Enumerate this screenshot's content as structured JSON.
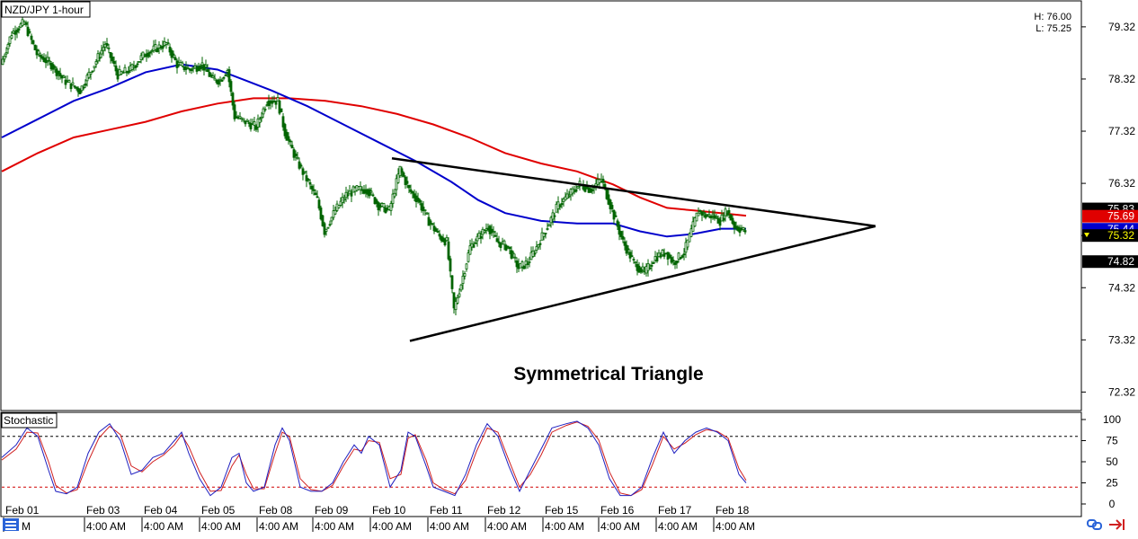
{
  "colors": {
    "ma_fast": "#0000cc",
    "ma_slow": "#e00000",
    "candle": "#006400",
    "stoch_k": "#2020c0",
    "stoch_d": "#d02020",
    "level_high": "#000000",
    "level_low": "#d00000",
    "trendline": "#000000"
  },
  "chart_data": [
    {
      "type": "candlestick",
      "title": "NZD/JPY 1-hour",
      "high_label": "H: 76.00",
      "low_label": "L: 75.25",
      "annotation": "Symmetrical Triangle",
      "ylim": [
        72.0,
        79.8
      ],
      "y_ticks": [
        79.32,
        78.32,
        77.32,
        76.32,
        75.32,
        74.32,
        73.32,
        72.32
      ],
      "y_tick_labels": [
        "79.32",
        "78.32",
        "77.32",
        "76.32",
        "75.32",
        "74.32",
        "73.32",
        "72.32"
      ],
      "price_tags": [
        {
          "value": 75.83,
          "label": "75.83",
          "bg": "#000000",
          "fg": "#ffffff"
        },
        {
          "value": 75.69,
          "label": "75.69",
          "bg": "#e00000",
          "fg": "#ffffff"
        },
        {
          "value": 75.44,
          "label": "75.44",
          "bg": "#0000cc",
          "fg": "#ffffff"
        },
        {
          "value": 75.32,
          "label": "75.32",
          "bg": "#000000",
          "fg": "#ffff00"
        },
        {
          "value": 74.82,
          "label": "74.82",
          "bg": "#000000",
          "fg": "#ffffff"
        }
      ],
      "x_range": [
        0,
        414
      ],
      "x_labels": [
        {
          "x": 1,
          "text": "Feb 01"
        },
        {
          "x": 46,
          "text": "Feb 03"
        },
        {
          "x": 78,
          "text": "Feb 04"
        },
        {
          "x": 110,
          "text": "Feb 05"
        },
        {
          "x": 142,
          "text": "Feb 08"
        },
        {
          "x": 173,
          "text": "Feb 09"
        },
        {
          "x": 205,
          "text": "Feb 10"
        },
        {
          "x": 237,
          "text": "Feb 11"
        },
        {
          "x": 269,
          "text": "Feb 12"
        },
        {
          "x": 301,
          "text": "Feb 15"
        },
        {
          "x": 332,
          "text": "Feb 16"
        },
        {
          "x": 364,
          "text": "Feb 17"
        },
        {
          "x": 396,
          "text": "Feb 18"
        }
      ],
      "x_labels_row2": [
        {
          "x": 10,
          "text": "M"
        },
        {
          "x": 46,
          "text": "4:00 AM"
        },
        {
          "x": 78,
          "text": "4:00 AM"
        },
        {
          "x": 110,
          "text": "4:00 AM"
        },
        {
          "x": 142,
          "text": "4:00 AM"
        },
        {
          "x": 173,
          "text": "4:00 AM"
        },
        {
          "x": 205,
          "text": "4:00 AM"
        },
        {
          "x": 237,
          "text": "4:00 AM"
        },
        {
          "x": 269,
          "text": "4:00 AM"
        },
        {
          "x": 301,
          "text": "4:00 AM"
        },
        {
          "x": 332,
          "text": "4:00 AM"
        },
        {
          "x": 364,
          "text": "4:00 AM"
        },
        {
          "x": 396,
          "text": "4:00 AM"
        }
      ],
      "price_path": [
        [
          0,
          78.6
        ],
        [
          6,
          79.2
        ],
        [
          13,
          79.4
        ],
        [
          20,
          78.8
        ],
        [
          28,
          78.6
        ],
        [
          35,
          78.3
        ],
        [
          44,
          78.1
        ],
        [
          52,
          78.6
        ],
        [
          58,
          79.0
        ],
        [
          65,
          78.4
        ],
        [
          72,
          78.5
        ],
        [
          80,
          78.8
        ],
        [
          86,
          78.9
        ],
        [
          92,
          79.0
        ],
        [
          98,
          78.6
        ],
        [
          105,
          78.5
        ],
        [
          112,
          78.6
        ],
        [
          118,
          78.3
        ],
        [
          122,
          78.3
        ],
        [
          126,
          78.5
        ],
        [
          130,
          77.6
        ],
        [
          136,
          77.5
        ],
        [
          142,
          77.4
        ],
        [
          148,
          77.9
        ],
        [
          154,
          77.9
        ],
        [
          158,
          77.3
        ],
        [
          164,
          76.8
        ],
        [
          170,
          76.4
        ],
        [
          176,
          76.0
        ],
        [
          180,
          75.4
        ],
        [
          186,
          75.8
        ],
        [
          192,
          76.1
        ],
        [
          198,
          76.2
        ],
        [
          204,
          76.2
        ],
        [
          210,
          75.9
        ],
        [
          216,
          75.8
        ],
        [
          222,
          76.6
        ],
        [
          227,
          76.2
        ],
        [
          232,
          76.0
        ],
        [
          238,
          75.6
        ],
        [
          244,
          75.3
        ],
        [
          248,
          75.2
        ],
        [
          252,
          73.9
        ],
        [
          256,
          74.4
        ],
        [
          261,
          75.1
        ],
        [
          266,
          75.3
        ],
        [
          271,
          75.5
        ],
        [
          276,
          75.2
        ],
        [
          282,
          75.1
        ],
        [
          288,
          74.7
        ],
        [
          293,
          74.8
        ],
        [
          298,
          75.1
        ],
        [
          304,
          75.5
        ],
        [
          310,
          75.9
        ],
        [
          316,
          76.1
        ],
        [
          322,
          76.3
        ],
        [
          328,
          76.2
        ],
        [
          334,
          76.4
        ],
        [
          338,
          76.0
        ],
        [
          342,
          75.6
        ],
        [
          346,
          75.2
        ],
        [
          352,
          74.8
        ],
        [
          358,
          74.6
        ],
        [
          364,
          74.9
        ],
        [
          370,
          75.0
        ],
        [
          374,
          74.8
        ],
        [
          380,
          75.0
        ],
        [
          384,
          75.4
        ],
        [
          388,
          75.8
        ],
        [
          392,
          75.7
        ],
        [
          396,
          75.7
        ],
        [
          400,
          75.6
        ],
        [
          404,
          75.8
        ],
        [
          408,
          75.5
        ],
        [
          414,
          75.4
        ]
      ],
      "ma_fast_path": [
        [
          0,
          77.2
        ],
        [
          20,
          77.55
        ],
        [
          40,
          77.9
        ],
        [
          60,
          78.15
        ],
        [
          80,
          78.45
        ],
        [
          100,
          78.6
        ],
        [
          120,
          78.5
        ],
        [
          135,
          78.3
        ],
        [
          150,
          78.1
        ],
        [
          170,
          77.8
        ],
        [
          190,
          77.45
        ],
        [
          210,
          77.1
        ],
        [
          230,
          76.75
        ],
        [
          250,
          76.35
        ],
        [
          265,
          76.0
        ],
        [
          280,
          75.75
        ],
        [
          300,
          75.6
        ],
        [
          320,
          75.55
        ],
        [
          340,
          75.55
        ],
        [
          355,
          75.4
        ],
        [
          370,
          75.3
        ],
        [
          385,
          75.35
        ],
        [
          400,
          75.45
        ],
        [
          414,
          75.45
        ]
      ],
      "ma_slow_path": [
        [
          0,
          76.55
        ],
        [
          20,
          76.9
        ],
        [
          40,
          77.2
        ],
        [
          60,
          77.35
        ],
        [
          80,
          77.5
        ],
        [
          100,
          77.7
        ],
        [
          120,
          77.85
        ],
        [
          140,
          77.95
        ],
        [
          160,
          77.95
        ],
        [
          180,
          77.9
        ],
        [
          200,
          77.8
        ],
        [
          220,
          77.65
        ],
        [
          240,
          77.45
        ],
        [
          260,
          77.2
        ],
        [
          280,
          76.9
        ],
        [
          300,
          76.7
        ],
        [
          320,
          76.55
        ],
        [
          340,
          76.3
        ],
        [
          355,
          76.05
        ],
        [
          370,
          75.85
        ],
        [
          385,
          75.8
        ],
        [
          400,
          75.75
        ],
        [
          414,
          75.7
        ]
      ],
      "trendline_upper": [
        [
          217,
          76.8
        ],
        [
          486,
          75.5
        ]
      ],
      "trendline_lower": [
        [
          227,
          73.3
        ],
        [
          486,
          75.5
        ]
      ]
    },
    {
      "type": "line",
      "title": "Stochastic",
      "ylim": [
        0,
        100
      ],
      "y_ticks": [
        100,
        75,
        50,
        25,
        0
      ],
      "y_tick_labels": [
        "100",
        "75",
        "50",
        "25",
        "0"
      ],
      "levels": [
        80,
        20
      ],
      "k_path": [
        [
          0,
          55
        ],
        [
          8,
          70
        ],
        [
          14,
          90
        ],
        [
          20,
          80
        ],
        [
          26,
          40
        ],
        [
          30,
          15
        ],
        [
          36,
          12
        ],
        [
          42,
          20
        ],
        [
          48,
          60
        ],
        [
          54,
          85
        ],
        [
          60,
          95
        ],
        [
          66,
          75
        ],
        [
          72,
          35
        ],
        [
          78,
          40
        ],
        [
          84,
          55
        ],
        [
          90,
          60
        ],
        [
          96,
          75
        ],
        [
          100,
          85
        ],
        [
          104,
          60
        ],
        [
          110,
          30
        ],
        [
          116,
          10
        ],
        [
          122,
          20
        ],
        [
          128,
          55
        ],
        [
          132,
          60
        ],
        [
          136,
          25
        ],
        [
          140,
          15
        ],
        [
          146,
          20
        ],
        [
          152,
          70
        ],
        [
          156,
          90
        ],
        [
          160,
          75
        ],
        [
          166,
          20
        ],
        [
          172,
          15
        ],
        [
          178,
          15
        ],
        [
          184,
          25
        ],
        [
          190,
          50
        ],
        [
          196,
          70
        ],
        [
          200,
          60
        ],
        [
          204,
          80
        ],
        [
          210,
          70
        ],
        [
          216,
          20
        ],
        [
          222,
          40
        ],
        [
          226,
          85
        ],
        [
          230,
          80
        ],
        [
          236,
          45
        ],
        [
          240,
          20
        ],
        [
          246,
          15
        ],
        [
          252,
          10
        ],
        [
          258,
          35
        ],
        [
          264,
          70
        ],
        [
          270,
          95
        ],
        [
          276,
          80
        ],
        [
          282,
          45
        ],
        [
          288,
          15
        ],
        [
          294,
          40
        ],
        [
          300,
          65
        ],
        [
          306,
          90
        ],
        [
          314,
          95
        ],
        [
          320,
          98
        ],
        [
          326,
          90
        ],
        [
          332,
          70
        ],
        [
          338,
          30
        ],
        [
          344,
          10
        ],
        [
          350,
          10
        ],
        [
          356,
          20
        ],
        [
          362,
          55
        ],
        [
          368,
          85
        ],
        [
          374,
          60
        ],
        [
          380,
          75
        ],
        [
          386,
          85
        ],
        [
          392,
          90
        ],
        [
          398,
          85
        ],
        [
          404,
          75
        ],
        [
          410,
          35
        ],
        [
          414,
          25
        ]
      ],
      "d_path": [
        [
          0,
          52
        ],
        [
          8,
          65
        ],
        [
          14,
          85
        ],
        [
          20,
          84
        ],
        [
          26,
          50
        ],
        [
          30,
          22
        ],
        [
          36,
          13
        ],
        [
          42,
          17
        ],
        [
          48,
          50
        ],
        [
          54,
          78
        ],
        [
          60,
          92
        ],
        [
          66,
          82
        ],
        [
          72,
          45
        ],
        [
          78,
          38
        ],
        [
          84,
          50
        ],
        [
          90,
          58
        ],
        [
          96,
          70
        ],
        [
          100,
          82
        ],
        [
          104,
          68
        ],
        [
          110,
          38
        ],
        [
          116,
          15
        ],
        [
          122,
          16
        ],
        [
          128,
          45
        ],
        [
          132,
          58
        ],
        [
          136,
          35
        ],
        [
          140,
          18
        ],
        [
          146,
          18
        ],
        [
          152,
          60
        ],
        [
          156,
          85
        ],
        [
          160,
          80
        ],
        [
          166,
          30
        ],
        [
          172,
          17
        ],
        [
          178,
          15
        ],
        [
          184,
          22
        ],
        [
          190,
          45
        ],
        [
          196,
          65
        ],
        [
          200,
          63
        ],
        [
          204,
          75
        ],
        [
          210,
          73
        ],
        [
          216,
          30
        ],
        [
          222,
          35
        ],
        [
          226,
          78
        ],
        [
          230,
          82
        ],
        [
          236,
          52
        ],
        [
          240,
          25
        ],
        [
          246,
          17
        ],
        [
          252,
          12
        ],
        [
          258,
          28
        ],
        [
          264,
          62
        ],
        [
          270,
          90
        ],
        [
          276,
          85
        ],
        [
          282,
          52
        ],
        [
          288,
          20
        ],
        [
          294,
          35
        ],
        [
          300,
          58
        ],
        [
          306,
          85
        ],
        [
          314,
          93
        ],
        [
          320,
          97
        ],
        [
          326,
          92
        ],
        [
          332,
          76
        ],
        [
          338,
          38
        ],
        [
          344,
          13
        ],
        [
          350,
          10
        ],
        [
          356,
          17
        ],
        [
          362,
          47
        ],
        [
          368,
          80
        ],
        [
          374,
          65
        ],
        [
          380,
          72
        ],
        [
          386,
          82
        ],
        [
          392,
          88
        ],
        [
          398,
          86
        ],
        [
          404,
          78
        ],
        [
          410,
          42
        ],
        [
          414,
          28
        ]
      ]
    }
  ],
  "icons": [
    "link-icon",
    "arrow-to-line-icon"
  ]
}
